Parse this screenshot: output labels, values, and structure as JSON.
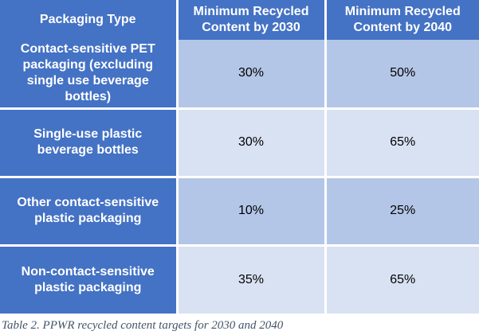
{
  "table": {
    "header": [
      "Packaging Type",
      "Minimum Recycled Content by 2030",
      "Minimum Recycled Content by 2040"
    ],
    "rows": [
      [
        "Contact-sensitive PET packaging (excluding single use beverage bottles)",
        "30%",
        "50%"
      ],
      [
        "Single-use plastic beverage bottles",
        "30%",
        "65%"
      ],
      [
        "Other contact-sensitive plastic packaging",
        "10%",
        "25%"
      ],
      [
        "Non-contact-sensitive plastic packaging",
        "35%",
        "65%"
      ]
    ]
  },
  "caption": "Table 2. PPWR recycled content targets for 2030 and 2040",
  "colors": {
    "header_and_label_blue": "#4472C4",
    "band_dark_blue": "#B4C6E7",
    "band_light_blue": "#D9E2F3",
    "gridline_white": "#FFFFFF",
    "header_text": "#FFFFFF",
    "value_text": "#000000",
    "caption_text": "#44546A"
  }
}
